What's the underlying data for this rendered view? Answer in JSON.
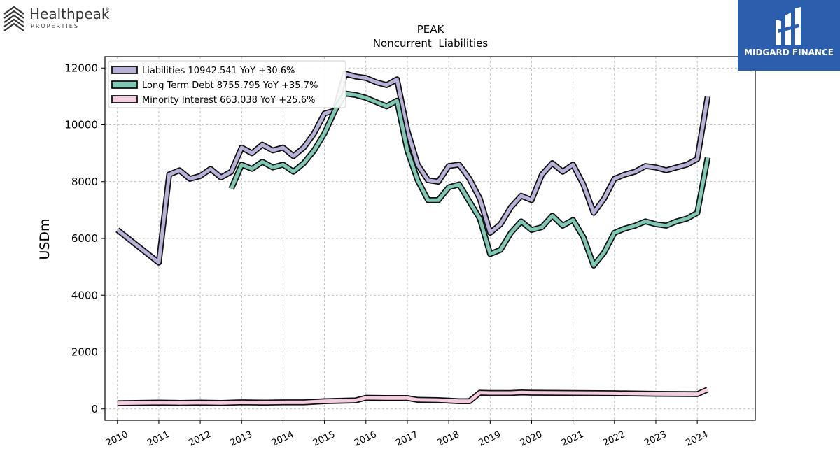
{
  "logos": {
    "left_name": "Healthpeak",
    "left_reg": "®",
    "left_sub": "PROPERTIES",
    "right_name": "MIDGARD FINANCE"
  },
  "chart_data": {
    "type": "line",
    "title": "PEAK",
    "subtitle": "Noncurrent  Liabilities",
    "ylabel": "USDm",
    "xlabel": "",
    "xlim": [
      2009.7,
      2025.4
    ],
    "ylim": [
      -400,
      12400
    ],
    "yticks": [
      0,
      2000,
      4000,
      6000,
      8000,
      10000,
      12000
    ],
    "xticks": [
      "2010",
      "2011",
      "2012",
      "2013",
      "2014",
      "2015",
      "2016",
      "2017",
      "2018",
      "2019",
      "2020",
      "2021",
      "2022",
      "2023",
      "2024"
    ],
    "grid": true,
    "legend_position": "top-left",
    "series": [
      {
        "name": "Liabilities  10942.541 YoY +30.6%",
        "color": "#b8b2d8",
        "points": [
          [
            2010.0,
            6300
          ],
          [
            2011.0,
            5150
          ],
          [
            2011.25,
            8250
          ],
          [
            2011.5,
            8400
          ],
          [
            2011.75,
            8100
          ],
          [
            2012.0,
            8200
          ],
          [
            2012.25,
            8450
          ],
          [
            2012.5,
            8150
          ],
          [
            2012.75,
            8350
          ],
          [
            2013.0,
            9200
          ],
          [
            2013.25,
            9000
          ],
          [
            2013.5,
            9300
          ],
          [
            2013.75,
            9100
          ],
          [
            2014.0,
            9200
          ],
          [
            2014.25,
            8900
          ],
          [
            2014.5,
            9200
          ],
          [
            2014.75,
            9700
          ],
          [
            2015.0,
            10400
          ],
          [
            2015.25,
            10500
          ],
          [
            2015.5,
            11800
          ],
          [
            2015.75,
            11700
          ],
          [
            2016.0,
            11650
          ],
          [
            2016.25,
            11500
          ],
          [
            2016.5,
            11400
          ],
          [
            2016.75,
            11600
          ],
          [
            2017.0,
            9800
          ],
          [
            2017.25,
            8600
          ],
          [
            2017.5,
            8050
          ],
          [
            2017.75,
            8000
          ],
          [
            2018.0,
            8550
          ],
          [
            2018.25,
            8600
          ],
          [
            2018.5,
            8100
          ],
          [
            2018.75,
            7400
          ],
          [
            2019.0,
            6200
          ],
          [
            2019.25,
            6500
          ],
          [
            2019.5,
            7100
          ],
          [
            2019.75,
            7500
          ],
          [
            2020.0,
            7350
          ],
          [
            2020.25,
            8250
          ],
          [
            2020.5,
            8650
          ],
          [
            2020.75,
            8350
          ],
          [
            2021.0,
            8600
          ],
          [
            2021.25,
            7900
          ],
          [
            2021.5,
            6900
          ],
          [
            2021.75,
            7400
          ],
          [
            2022.0,
            8100
          ],
          [
            2022.25,
            8250
          ],
          [
            2022.5,
            8350
          ],
          [
            2022.75,
            8550
          ],
          [
            2023.0,
            8500
          ],
          [
            2023.25,
            8400
          ],
          [
            2023.5,
            8500
          ],
          [
            2023.75,
            8600
          ],
          [
            2024.0,
            8800
          ],
          [
            2024.25,
            11000
          ]
        ]
      },
      {
        "name": "Long Term Debt  8755.795 YoY +35.7%",
        "color": "#7fc8b4",
        "points": [
          [
            2012.75,
            7750
          ],
          [
            2013.0,
            8600
          ],
          [
            2013.25,
            8450
          ],
          [
            2013.5,
            8700
          ],
          [
            2013.75,
            8500
          ],
          [
            2014.0,
            8600
          ],
          [
            2014.25,
            8350
          ],
          [
            2014.5,
            8650
          ],
          [
            2014.75,
            9100
          ],
          [
            2015.0,
            9700
          ],
          [
            2015.25,
            10500
          ],
          [
            2015.5,
            11100
          ],
          [
            2015.75,
            11050
          ],
          [
            2016.0,
            10950
          ],
          [
            2016.25,
            10800
          ],
          [
            2016.5,
            10650
          ],
          [
            2016.75,
            10850
          ],
          [
            2017.0,
            9100
          ],
          [
            2017.25,
            8050
          ],
          [
            2017.5,
            7350
          ],
          [
            2017.75,
            7350
          ],
          [
            2018.0,
            7800
          ],
          [
            2018.25,
            7900
          ],
          [
            2018.5,
            7300
          ],
          [
            2018.75,
            6700
          ],
          [
            2019.0,
            5450
          ],
          [
            2019.25,
            5600
          ],
          [
            2019.5,
            6200
          ],
          [
            2019.75,
            6600
          ],
          [
            2020.0,
            6300
          ],
          [
            2020.25,
            6400
          ],
          [
            2020.5,
            6800
          ],
          [
            2020.75,
            6450
          ],
          [
            2021.0,
            6650
          ],
          [
            2021.25,
            6050
          ],
          [
            2021.5,
            5050
          ],
          [
            2021.75,
            5500
          ],
          [
            2022.0,
            6200
          ],
          [
            2022.25,
            6350
          ],
          [
            2022.5,
            6450
          ],
          [
            2022.75,
            6600
          ],
          [
            2023.0,
            6500
          ],
          [
            2023.25,
            6450
          ],
          [
            2023.5,
            6600
          ],
          [
            2023.75,
            6700
          ],
          [
            2024.0,
            6900
          ],
          [
            2024.25,
            8850
          ]
        ]
      },
      {
        "name": "Minority Interest  663.038 YoY +25.6%",
        "color": "#f5cde0",
        "points": [
          [
            2010.0,
            200
          ],
          [
            2011.0,
            220
          ],
          [
            2011.5,
            210
          ],
          [
            2012.0,
            220
          ],
          [
            2012.5,
            210
          ],
          [
            2013.0,
            230
          ],
          [
            2013.5,
            220
          ],
          [
            2014.0,
            230
          ],
          [
            2014.5,
            230
          ],
          [
            2015.0,
            270
          ],
          [
            2015.5,
            290
          ],
          [
            2015.75,
            300
          ],
          [
            2016.0,
            390
          ],
          [
            2016.5,
            380
          ],
          [
            2017.0,
            380
          ],
          [
            2017.25,
            320
          ],
          [
            2017.75,
            310
          ],
          [
            2018.0,
            290
          ],
          [
            2018.25,
            270
          ],
          [
            2018.5,
            270
          ],
          [
            2018.75,
            570
          ],
          [
            2019.0,
            560
          ],
          [
            2019.5,
            560
          ],
          [
            2019.75,
            580
          ],
          [
            2020.0,
            570
          ],
          [
            2021.0,
            560
          ],
          [
            2022.0,
            550
          ],
          [
            2023.0,
            530
          ],
          [
            2024.0,
            520
          ],
          [
            2024.25,
            680
          ]
        ]
      }
    ]
  }
}
